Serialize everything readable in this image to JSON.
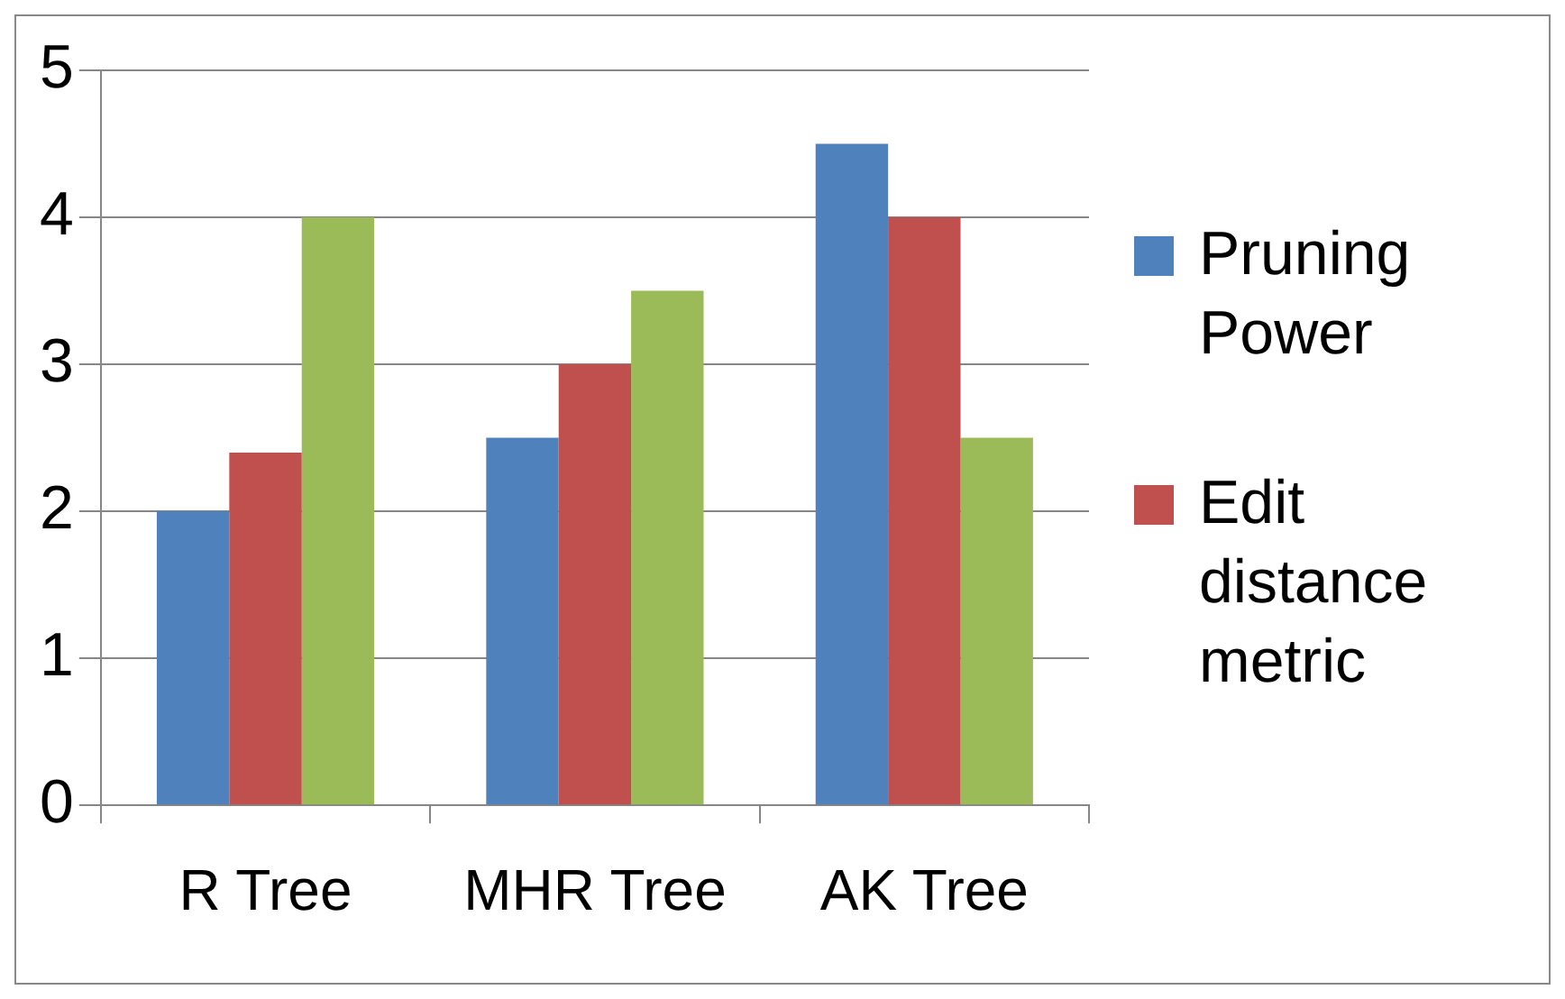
{
  "chart_data": {
    "type": "bar",
    "categories": [
      "R Tree",
      "MHR Tree",
      "AK Tree"
    ],
    "series": [
      {
        "name": "Pruning Power",
        "color": "#4f81bd",
        "values": [
          2,
          2.5,
          4.5
        ]
      },
      {
        "name": "Edit distance metric",
        "color": "#c0504d",
        "values": [
          2.4,
          3,
          4
        ]
      },
      {
        "color": "#9bbb59",
        "values": [
          4,
          3.5,
          2.5
        ]
      }
    ],
    "ylim": [
      0,
      5
    ],
    "yticks": [
      0,
      1,
      2,
      3,
      4,
      5
    ],
    "grid": "y",
    "legend": "right"
  }
}
